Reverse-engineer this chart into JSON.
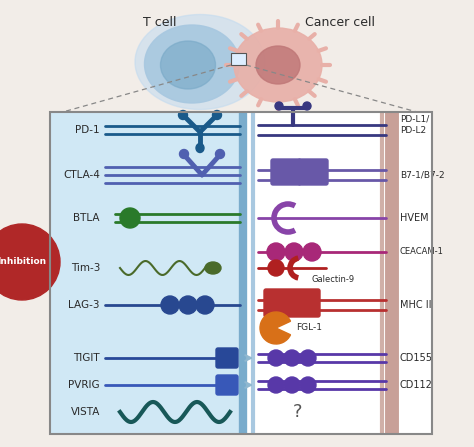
{
  "bg_color": "#f2ede8",
  "tcell_color": "#a8c8e0",
  "tcell_glow": "#c0daf0",
  "cancer_color": "#e8b0a8",
  "cancer_core": "#c07878",
  "box_bg": "#d0e8f5",
  "membrane_left_color1": "#7aaccc",
  "membrane_left_color2": "#a8c8e0",
  "membrane_right_color": "#c8a098",
  "inhibition_color": "#b02828",
  "t_cell_label": "T cell",
  "cancer_cell_label": "Cancer cell",
  "inhibition_label": "Inhibition",
  "pd1_color": "#1a5a8a",
  "pd1l_color": "#383880",
  "ctla4_color": "#5060b0",
  "b7_color": "#6858a8",
  "btla_color": "#2a7a2a",
  "hvem_color": "#8844a8",
  "tim3_color": "#4a6a2a",
  "ceacam_color": "#a82878",
  "galectin_color": "#b02020",
  "lag3_color": "#284890",
  "mhcii_color": "#b83030",
  "fgl1_color": "#d87018",
  "tigit_color": "#284898",
  "pvrig_color": "#3858b8",
  "cd155_color": "#5838a8",
  "cd112_color": "#5838a8",
  "vista_color": "#185858",
  "arrow_color": "#90b8d0",
  "text_color": "#2a2a2a"
}
